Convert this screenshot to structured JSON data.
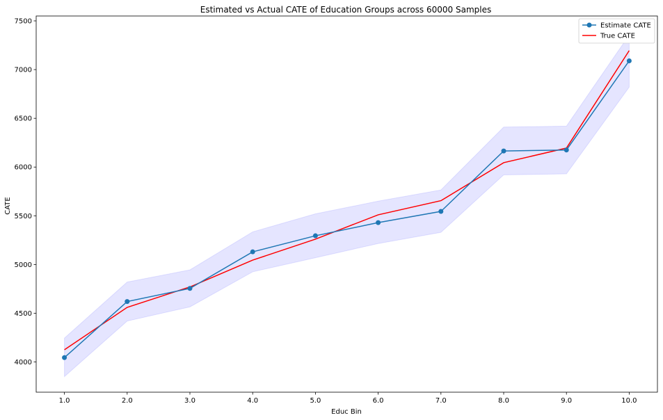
{
  "chart_data": {
    "type": "line",
    "title": "Estimated vs Actual CATE of Education Groups across 60000 Samples",
    "xlabel": "Educ Bin",
    "ylabel": "CATE",
    "x": [
      1.0,
      2.0,
      3.0,
      4.0,
      5.0,
      6.0,
      7.0,
      8.0,
      9.0,
      10.0
    ],
    "x_tick_labels": [
      "1.0",
      "2.0",
      "3.0",
      "4.0",
      "5.0",
      "6.0",
      "7.0",
      "8.0",
      "9.0",
      "10.0"
    ],
    "y_ticks": [
      4000,
      4500,
      5000,
      5500,
      6000,
      6500,
      7000,
      7500
    ],
    "xlim": [
      0.55,
      10.45
    ],
    "ylim": [
      3690,
      7550
    ],
    "grid": false,
    "legend_position": "top-right",
    "series": [
      {
        "name": "Estimate CATE",
        "color": "#1f77b4",
        "marker": "circle",
        "values": [
          4045,
          4620,
          4755,
          5130,
          5295,
          5430,
          5545,
          6165,
          6175,
          7090
        ]
      },
      {
        "name": "True CATE",
        "color": "#ff0000",
        "marker": "none",
        "values": [
          4125,
          4560,
          4770,
          5045,
          5260,
          5510,
          5655,
          6045,
          6195,
          7195
        ]
      }
    ],
    "confidence_band": {
      "color": "#0000ff",
      "lower": [
        3850,
        4420,
        4565,
        4925,
        5070,
        5215,
        5330,
        5920,
        5930,
        6820
      ],
      "upper": [
        4245,
        4820,
        4945,
        5335,
        5520,
        5650,
        5765,
        6410,
        6420,
        7355
      ]
    }
  }
}
